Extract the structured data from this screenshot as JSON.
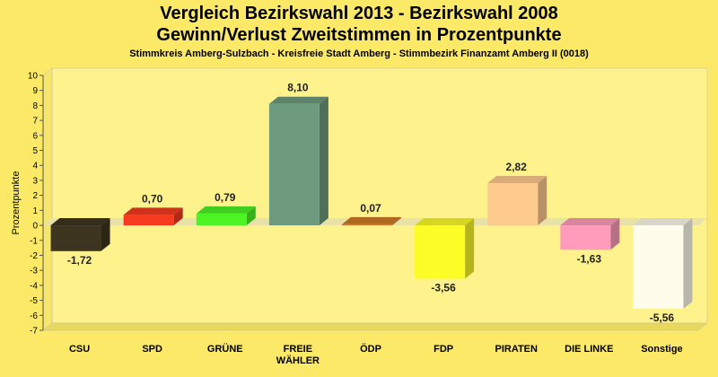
{
  "title": "Vergleich Bezirkswahl 2013 - Bezirkswahl 2008",
  "subtitle": "Gewinn/Verlust Zweitstimmen in Prozentpunkte",
  "caption": "Stimmkreis Amberg-Sulzbach - Kreisfreie Stadt Amberg - Stimmbezirk Finanzamt Amberg II (0018)",
  "chart_data": {
    "type": "bar",
    "ylabel": "Prozentpunkte",
    "xlabel": "",
    "ylim": [
      -7,
      10
    ],
    "yticks": [
      "10",
      "9",
      "8",
      "7",
      "6",
      "5",
      "4",
      "3",
      "2",
      "1",
      "0",
      "-1",
      "-2",
      "-3",
      "-4",
      "-5",
      "-6",
      "-7"
    ],
    "categories": [
      [
        "CSU"
      ],
      [
        "SPD"
      ],
      [
        "GRÜNE"
      ],
      [
        "FREIE",
        "WÄHLER"
      ],
      [
        "ÖDP"
      ],
      [
        "FDP"
      ],
      [
        "PIRATEN"
      ],
      [
        "DIE LINKE"
      ],
      [
        "Sonstige"
      ]
    ],
    "values": [
      -1.72,
      0.7,
      0.79,
      8.1,
      0.07,
      -3.56,
      2.82,
      -1.63,
      -5.56
    ],
    "value_labels": [
      "-1,72",
      "0,70",
      "0,79",
      "8,10",
      "0,07",
      "-3,56",
      "2,82",
      "-1,63",
      "-5,56"
    ],
    "colors": [
      "#3d3520",
      "#f53a1f",
      "#4cf424",
      "#6e9a7e",
      "#ce7a24",
      "#fcfc26",
      "#ffca8e",
      "#ff9cbc",
      "#fffcec"
    ],
    "background": "#fce968",
    "plot_background": "#fdf28c",
    "grid": false
  }
}
